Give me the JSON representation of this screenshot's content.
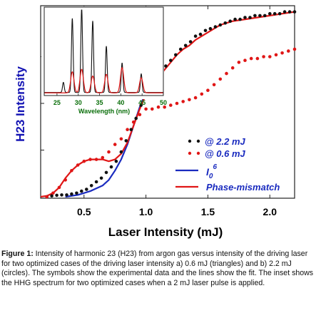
{
  "colors": {
    "black": "#111111",
    "red": "#e01616",
    "blue": "#1a2bbf",
    "ylabel": "#1414b4",
    "green_axis": "#0a6e0a"
  },
  "caption": {
    "label": "Figure 1:",
    "text": " Intensity of harmonic 23 (H23) from argon gas versus intensity of the driving laser for two optimized cases of the driving laser intensity a) 0.6 mJ (triangles) and b) 2.2 mJ (circles). The symbols show the experimental data and the lines show the fit. The inset shows the HHG spectrum for two optimized cases when a 2 mJ laser pulse is applied."
  },
  "chart_data": [
    {
      "type": "scatter",
      "title": "",
      "xlabel": "Laser Intensity (mJ)",
      "ylabel": "H23 Intensity",
      "xlim": [
        0.15,
        2.2
      ],
      "ylim": [
        0,
        1
      ],
      "xticks": [
        0.5,
        1.0,
        1.5,
        2.0
      ],
      "xtick_labels": [
        "0.5",
        "1.0",
        "1.5",
        "2.0"
      ],
      "yticks_shown": false,
      "legend_position": "bottom-right",
      "legend": [
        {
          "label": "@ 2.2 mJ",
          "marker": "circle",
          "color": "black"
        },
        {
          "label": "@ 0.6 mJ",
          "marker": "circle",
          "color": "red"
        },
        {
          "label": "I06",
          "label_main": "I",
          "label_sub": "0",
          "label_sup": "6",
          "marker": "line",
          "color": "blue"
        },
        {
          "label": "Phase-mismatch",
          "marker": "line",
          "color": "red"
        }
      ],
      "series": [
        {
          "name": "@ 2.2 mJ",
          "kind": "points",
          "color": "black",
          "x": [
            0.2,
            0.24,
            0.28,
            0.32,
            0.36,
            0.4,
            0.44,
            0.48,
            0.52,
            0.56,
            0.6,
            0.64,
            0.68,
            0.72,
            0.76,
            0.8,
            0.84,
            0.88,
            0.92,
            0.96,
            1.0,
            1.04,
            1.08,
            1.12,
            1.16,
            1.2,
            1.24,
            1.28,
            1.32,
            1.36,
            1.4,
            1.44,
            1.48,
            1.52,
            1.56,
            1.6,
            1.64,
            1.68,
            1.72,
            1.76,
            1.8,
            1.84,
            1.88,
            1.92,
            1.96,
            2.0,
            2.04,
            2.08,
            2.12,
            2.16,
            2.2
          ],
          "y": [
            0.0,
            0.005,
            0.008,
            0.01,
            0.01,
            0.015,
            0.02,
            0.03,
            0.04,
            0.06,
            0.08,
            0.1,
            0.13,
            0.16,
            0.19,
            0.24,
            0.3,
            0.36,
            0.42,
            0.49,
            0.55,
            0.58,
            0.61,
            0.66,
            0.7,
            0.73,
            0.76,
            0.79,
            0.81,
            0.83,
            0.86,
            0.87,
            0.89,
            0.9,
            0.91,
            0.92,
            0.93,
            0.94,
            0.95,
            0.95,
            0.96,
            0.96,
            0.97,
            0.97,
            0.97,
            0.98,
            0.98,
            0.98,
            0.99,
            0.99,
            0.99
          ]
        },
        {
          "name": "@ 0.6 mJ",
          "kind": "points",
          "color": "red",
          "x": [
            0.2,
            0.25,
            0.3,
            0.35,
            0.4,
            0.45,
            0.5,
            0.55,
            0.6,
            0.65,
            0.7,
            0.75,
            0.8,
            0.85,
            0.9,
            0.95,
            1.0,
            1.05,
            1.1,
            1.15,
            1.2,
            1.25,
            1.3,
            1.35,
            1.4,
            1.45,
            1.5,
            1.55,
            1.6,
            1.65,
            1.7,
            1.75,
            1.8,
            1.85,
            1.9,
            1.95,
            2.0,
            2.05,
            2.1,
            2.15,
            2.2
          ],
          "y": [
            0.0,
            0.02,
            0.05,
            0.09,
            0.14,
            0.17,
            0.19,
            0.2,
            0.2,
            0.21,
            0.24,
            0.28,
            0.31,
            0.36,
            0.4,
            0.44,
            0.47,
            0.47,
            0.48,
            0.48,
            0.49,
            0.5,
            0.51,
            0.52,
            0.53,
            0.55,
            0.57,
            0.6,
            0.63,
            0.66,
            0.69,
            0.72,
            0.73,
            0.74,
            0.74,
            0.75,
            0.75,
            0.76,
            0.77,
            0.78,
            0.79
          ]
        },
        {
          "name": "I06",
          "kind": "line",
          "color": "blue",
          "x": [
            0.35,
            0.45,
            0.55,
            0.65,
            0.7,
            0.75,
            0.8,
            0.85,
            0.9,
            0.95,
            1.0
          ],
          "y": [
            0.0,
            0.01,
            0.03,
            0.06,
            0.09,
            0.14,
            0.2,
            0.28,
            0.38,
            0.48,
            0.56
          ]
        },
        {
          "name": "Phase-mismatch",
          "kind": "line",
          "color": "red",
          "x": [
            0.15,
            0.2,
            0.25,
            0.3,
            0.35,
            0.4,
            0.45,
            0.5,
            0.55,
            0.6,
            0.65,
            0.7,
            0.75,
            0.8,
            0.85,
            0.9,
            0.95,
            1.0,
            1.05,
            1.1,
            1.15,
            1.2,
            1.25,
            1.3,
            1.35,
            1.4,
            1.45,
            1.5,
            1.55,
            1.6,
            1.65,
            1.7,
            1.8,
            1.9,
            2.0,
            2.1,
            2.2
          ],
          "y": [
            0.0,
            0.005,
            0.02,
            0.05,
            0.1,
            0.14,
            0.17,
            0.19,
            0.2,
            0.2,
            0.2,
            0.19,
            0.2,
            0.23,
            0.29,
            0.38,
            0.47,
            0.55,
            0.6,
            0.64,
            0.68,
            0.72,
            0.76,
            0.79,
            0.81,
            0.84,
            0.86,
            0.88,
            0.9,
            0.92,
            0.93,
            0.94,
            0.95,
            0.96,
            0.97,
            0.98,
            0.99
          ]
        }
      ]
    },
    {
      "type": "line",
      "title": "",
      "xlabel": "Wavelength (nm)",
      "ylabel": "",
      "xlim": [
        22,
        50
      ],
      "ylim": [
        0,
        1
      ],
      "xticks": [
        25,
        30,
        35,
        40,
        45,
        50
      ],
      "xtick_labels": [
        "25",
        "30",
        "35",
        "40",
        "45",
        "50"
      ],
      "series": [
        {
          "name": "",
          "color": "black",
          "peaks": [
            {
              "x": 26.5,
              "height": 0.12
            },
            {
              "x": 28.6,
              "height": 0.88
            },
            {
              "x": 30.8,
              "height": 1.0
            },
            {
              "x": 33.4,
              "height": 0.85
            },
            {
              "x": 36.6,
              "height": 0.55
            },
            {
              "x": 40.3,
              "height": 0.35
            },
            {
              "x": 44.8,
              "height": 0.22
            }
          ]
        },
        {
          "name": "",
          "color": "red",
          "peaks": [
            {
              "x": 28.6,
              "height": 0.25
            },
            {
              "x": 30.8,
              "height": 0.28
            },
            {
              "x": 33.4,
              "height": 0.2
            },
            {
              "x": 36.6,
              "height": 0.22
            },
            {
              "x": 40.3,
              "height": 0.3
            },
            {
              "x": 44.8,
              "height": 0.18
            }
          ]
        }
      ]
    }
  ]
}
